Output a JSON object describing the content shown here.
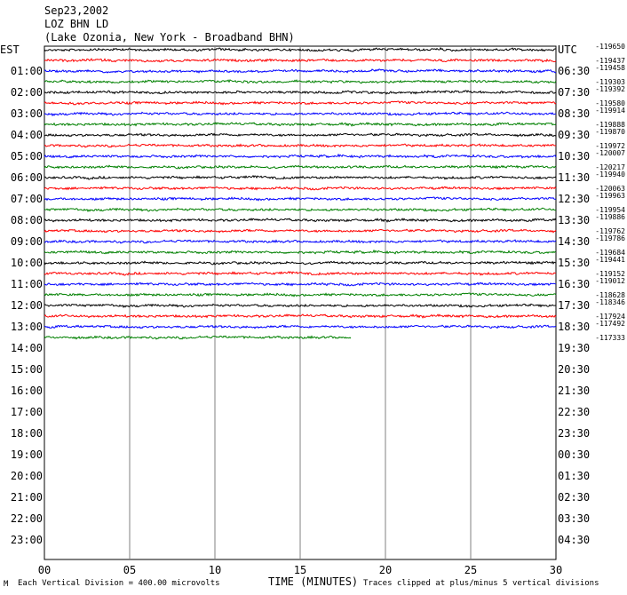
{
  "header": {
    "date": "Sep23,2002",
    "station": "LOZ BHN LD",
    "location": "(Lake Ozonia, New York - Broadband BHN)"
  },
  "left_tz": "EST",
  "right_tz": "UTC",
  "footer": {
    "division": "Each Vertical Division =  400.00 microvolts",
    "xlabel": "TIME (MINUTES)",
    "clip_note": "Traces clipped at plus/minus 5 vertical divisions",
    "corner_mark": "M"
  },
  "colors": [
    "#000000",
    "#ff0000",
    "#0000ff",
    "#008000"
  ],
  "chart_data": {
    "type": "line",
    "title": "Sep23,2002 LOZ BHN LD (Lake Ozonia, New York - Broadband BHN)",
    "xlabel": "TIME (MINUTES)",
    "x_ticks": [
      "00",
      "05",
      "10",
      "15",
      "20",
      "25",
      "30"
    ],
    "xlim": [
      0,
      30
    ],
    "left_labels": [
      "EST",
      "01:00",
      "02:00",
      "03:00",
      "04:00",
      "05:00",
      "06:00",
      "07:00",
      "08:00",
      "09:00",
      "10:00",
      "11:00",
      "12:00",
      "13:00",
      "14:00",
      "15:00",
      "16:00",
      "17:00",
      "18:00",
      "19:00",
      "20:00",
      "21:00",
      "22:00",
      "23:00"
    ],
    "right_labels": [
      "UTC",
      "06:30",
      "07:30",
      "08:30",
      "09:30",
      "10:30",
      "11:30",
      "12:30",
      "13:30",
      "14:30",
      "15:30",
      "16:30",
      "17:30",
      "18:30",
      "19:30",
      "20:30",
      "21:30",
      "22:30",
      "23:30",
      "00:30",
      "01:30",
      "02:30",
      "03:30",
      "04:30"
    ],
    "trace_offsets": [
      "-119650",
      "-119437",
      "-119458",
      "-119303",
      "-119392",
      "-119580",
      "-119914",
      "-119888",
      "-119870",
      "-119972",
      "-120007",
      "-120217",
      "-119940",
      "-120063",
      "-119963",
      "-119954",
      "-119886",
      "-119762",
      "-119786",
      "-119684",
      "-119441",
      "-119152",
      "-119012",
      "-118628",
      "-118346",
      "-117924",
      "-117492",
      "-117333"
    ],
    "trace_count": 28,
    "last_trace_end_minute": 18,
    "grid": true
  }
}
